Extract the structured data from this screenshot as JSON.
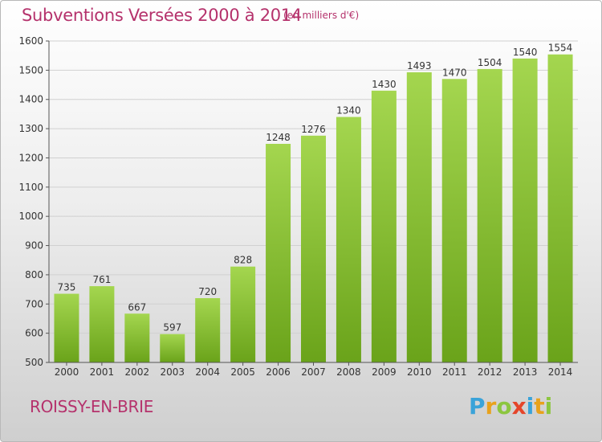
{
  "header": {
    "title": "Subventions Versées 2000 à 2014",
    "subtitle": "(en milliers d'€)"
  },
  "footer": {
    "city": "ROISSY-EN-BRIE",
    "logo": {
      "letters": [
        "P",
        "r",
        "o",
        "x",
        "i",
        "t",
        "i"
      ],
      "colors": [
        "#3aa3d9",
        "#e8a21c",
        "#8cc63f",
        "#e5452a",
        "#3aa3d9",
        "#e8a21c",
        "#8cc63f"
      ]
    }
  },
  "colors": {
    "bar_light": "#a4d64f",
    "bar_dark": "#6aa31a",
    "text_accent": "#b5326c",
    "grid": "#d0d0d0"
  },
  "chart_data": {
    "type": "bar",
    "title": "Subventions Versées 2000 à 2014",
    "xlabel": "",
    "ylabel": "",
    "categories": [
      "2000",
      "2001",
      "2002",
      "2003",
      "2004",
      "2005",
      "2006",
      "2007",
      "2008",
      "2009",
      "2010",
      "2011",
      "2012",
      "2013",
      "2014"
    ],
    "values": [
      735,
      761,
      667,
      597,
      720,
      828,
      1248,
      1276,
      1340,
      1430,
      1493,
      1470,
      1504,
      1540,
      1554
    ],
    "ylim": [
      500,
      1600
    ],
    "yticks": [
      500,
      600,
      700,
      800,
      900,
      1000,
      1100,
      1200,
      1300,
      1400,
      1500,
      1600
    ],
    "grid": true
  }
}
